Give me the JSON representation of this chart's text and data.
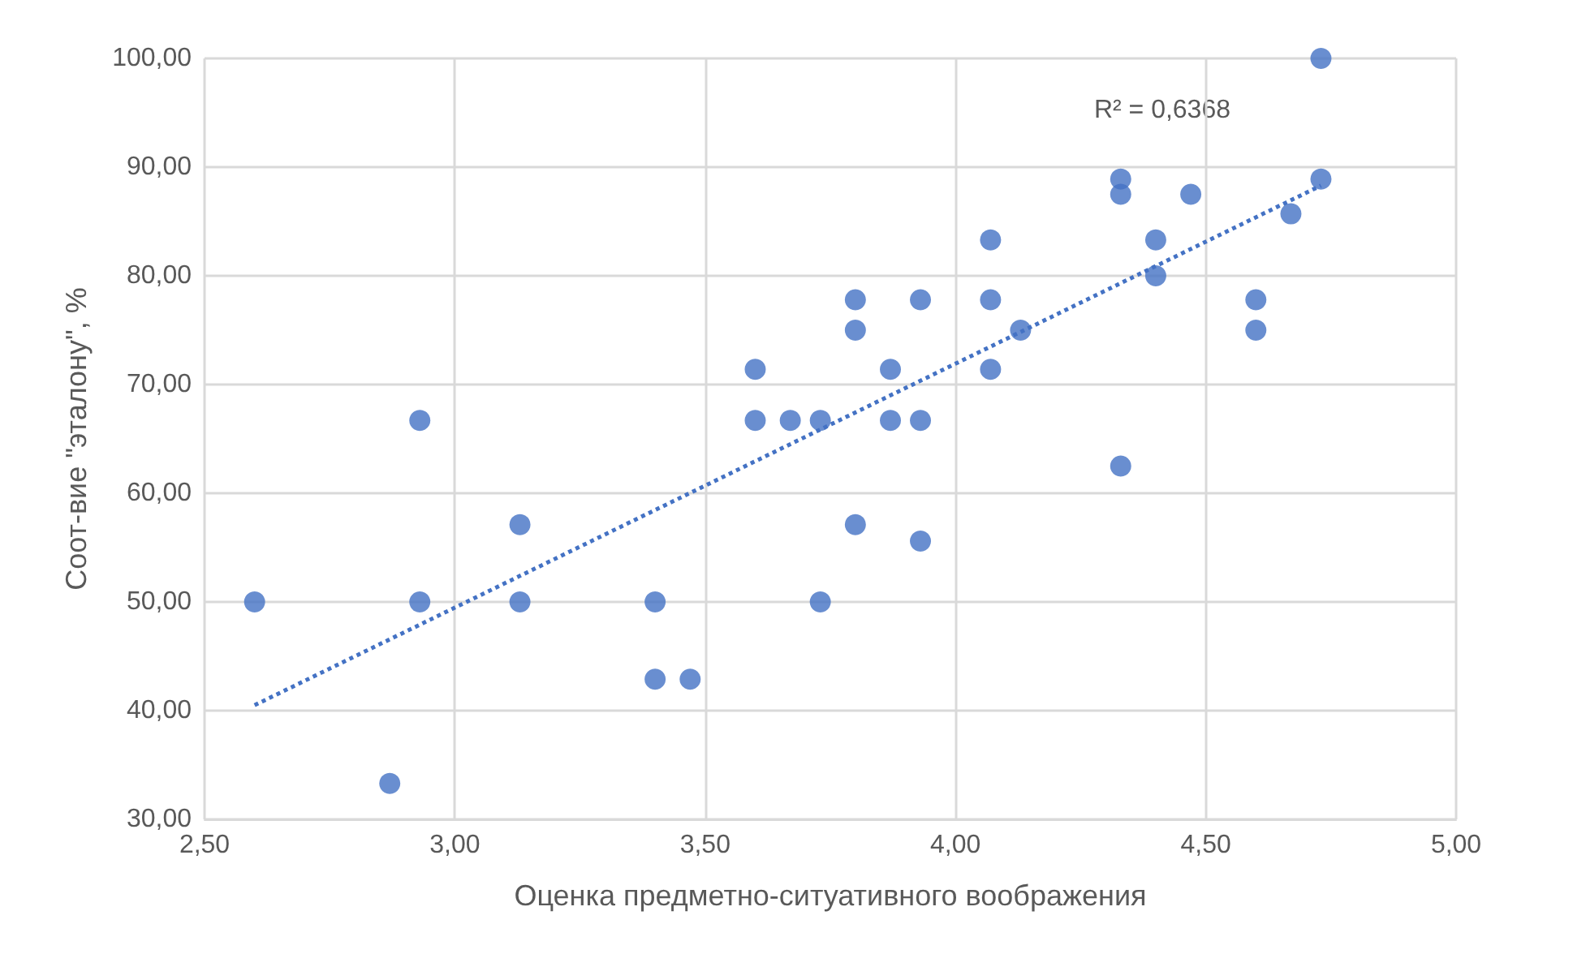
{
  "chart_data": {
    "type": "scatter",
    "xlabel": "Оценка предметно-ситуативного воображения",
    "ylabel": "Соот-вие \"эталону\", %",
    "annotations": [
      "R² = 0,6368"
    ],
    "xlim": [
      2.5,
      5
    ],
    "xticks": [
      {
        "value": 2.5,
        "label": "2,50"
      },
      {
        "value": 3,
        "label": "3,00"
      },
      {
        "value": 3.5,
        "label": "3,50"
      },
      {
        "value": 4,
        "label": "4,00"
      },
      {
        "value": 4.5,
        "label": "4,50"
      },
      {
        "value": 5,
        "label": "5,00"
      }
    ],
    "ylim": [
      30,
      100
    ],
    "yticks": [
      {
        "value": 30,
        "label": "30,00"
      },
      {
        "value": 40,
        "label": "40,00"
      },
      {
        "value": 50,
        "label": "50,00"
      },
      {
        "value": 60,
        "label": "60,00"
      },
      {
        "value": 70,
        "label": "70,00"
      },
      {
        "value": 80,
        "label": "80,00"
      },
      {
        "value": 90,
        "label": "90,00"
      },
      {
        "value": 100,
        "label": "100,00"
      }
    ],
    "grid": true,
    "marker": "circle",
    "series": [
      {
        "color": "#4472c4",
        "x": [
          2.6,
          2.87,
          2.93,
          2.93,
          3.13,
          3.13,
          3.4,
          3.4,
          3.47,
          3.6,
          3.6,
          3.67,
          3.73,
          3.73,
          3.8,
          3.8,
          3.8,
          3.87,
          3.87,
          3.93,
          3.93,
          3.93,
          4.07,
          4.07,
          4.07,
          4.13,
          4.33,
          4.33,
          4.33,
          4.4,
          4.4,
          4.47,
          4.6,
          4.6,
          4.67,
          4.73,
          4.73
        ],
        "values": [
          50,
          33.3,
          66.7,
          50,
          57.1,
          50,
          50,
          42.9,
          42.9,
          71.4,
          66.7,
          66.7,
          66.7,
          50,
          77.8,
          75,
          57.1,
          71.4,
          66.7,
          77.8,
          66.7,
          55.6,
          83.3,
          77.8,
          71.4,
          75,
          88.9,
          87.5,
          62.5,
          83.3,
          80,
          87.5,
          77.8,
          75,
          85.7,
          100,
          88.9
        ]
      },
      {
        "type": "line",
        "color": "#4472c4",
        "line_style": "dotted",
        "marker": "none",
        "x": [
          2.6,
          4.73
        ],
        "values": [
          40.5,
          88.3
        ]
      }
    ]
  }
}
